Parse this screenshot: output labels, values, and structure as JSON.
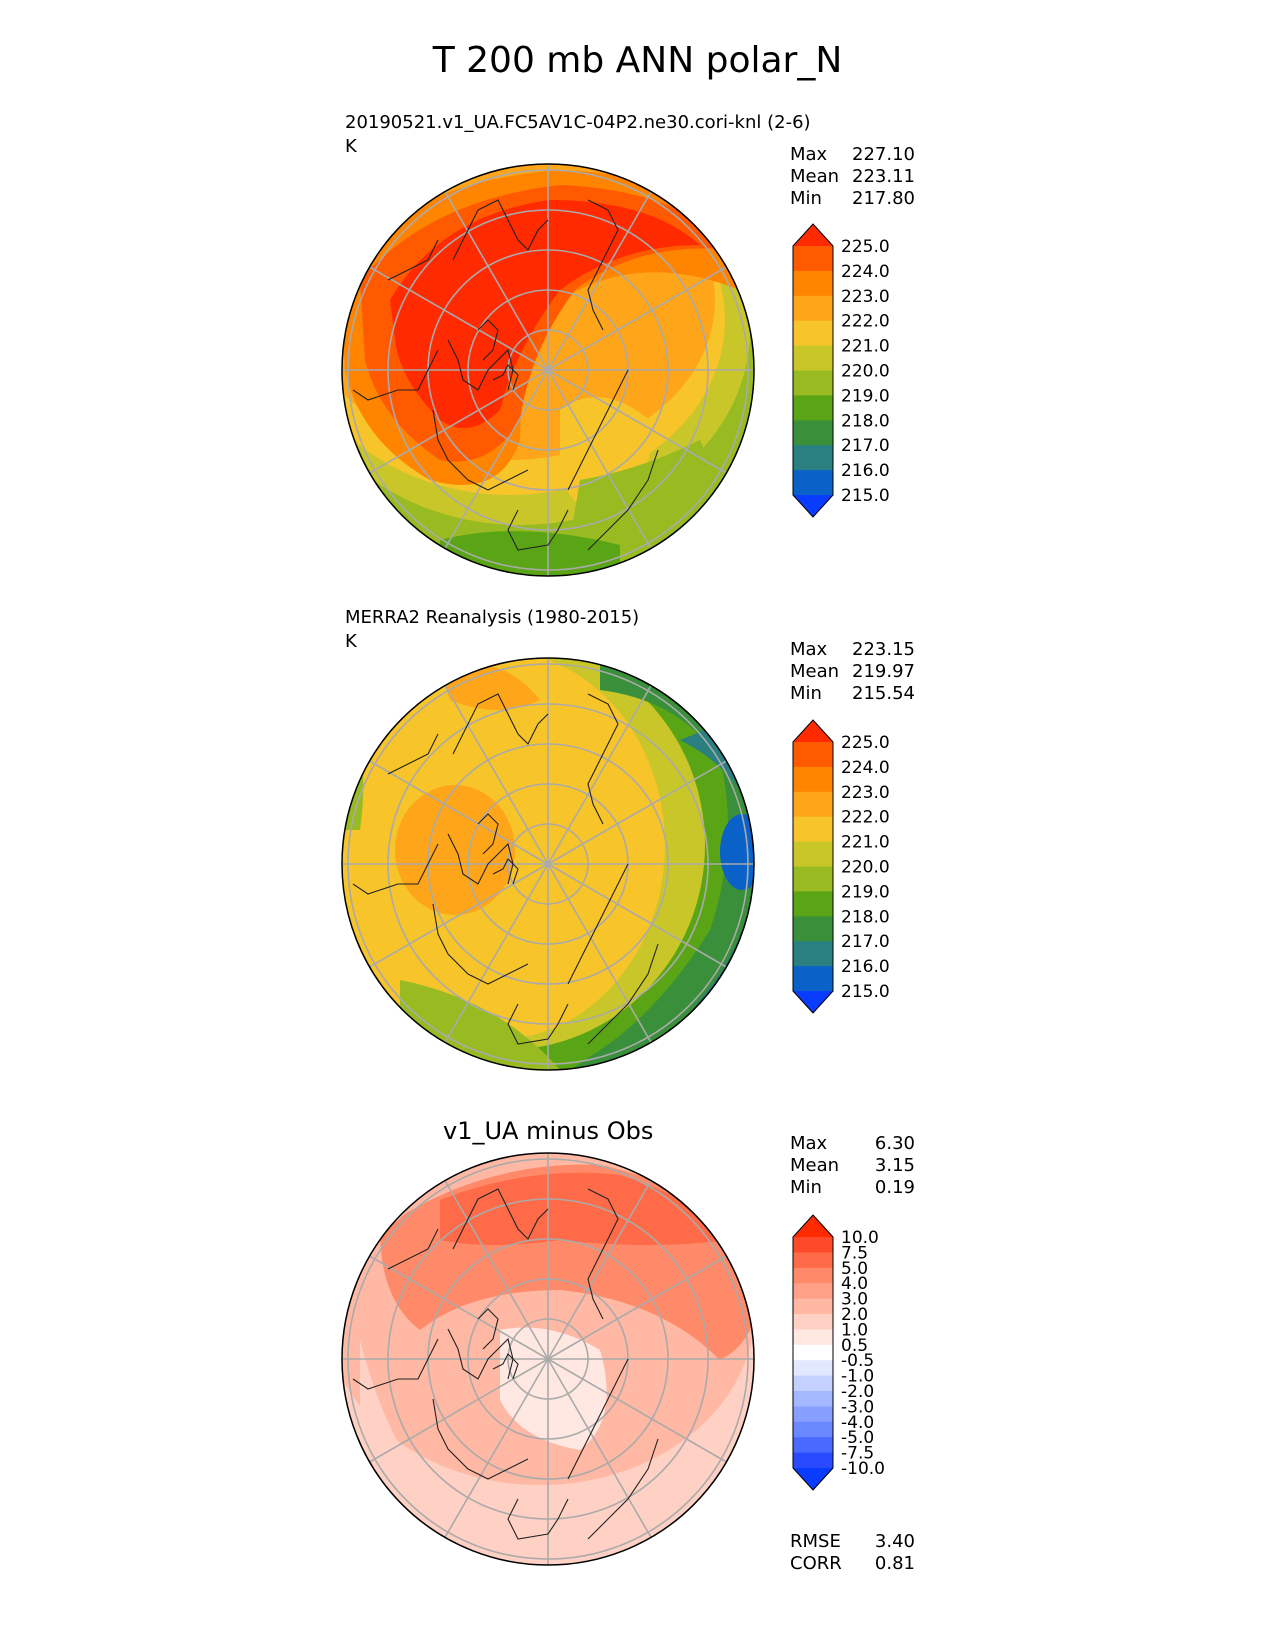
{
  "title": "T 200 mb ANN polar_N",
  "panels": [
    {
      "title_line1": "20190521.v1_UA.FC5AV1C-04P2.ne30.cori-knl (2-6)",
      "title_line2": "K",
      "stats": [
        {
          "label": "Max",
          "value": "227.10"
        },
        {
          "label": "Mean",
          "value": "223.11"
        },
        {
          "label": "Min",
          "value": "217.80"
        }
      ]
    },
    {
      "title_line1": "MERRA2 Reanalysis (1980-2015)",
      "title_line2": "K",
      "stats": [
        {
          "label": "Max",
          "value": "223.15"
        },
        {
          "label": "Mean",
          "value": "219.97"
        },
        {
          "label": "Min",
          "value": "215.54"
        }
      ]
    },
    {
      "title_line1": "v1_UA minus Obs",
      "title_line2": "",
      "stats": [
        {
          "label": "Max",
          "value": "6.30"
        },
        {
          "label": "Mean",
          "value": "3.15"
        },
        {
          "label": "Min",
          "value": "0.19"
        }
      ],
      "extra_stats": [
        {
          "label": "RMSE",
          "value": "3.40"
        },
        {
          "label": "CORR",
          "value": "0.81"
        }
      ]
    }
  ],
  "chart_data": [
    {
      "type": "heatmap",
      "projection": "north-polar-stereographic",
      "title": "20190521.v1_UA.FC5AV1C-04P2.ne30.cori-knl (2-6)",
      "units": "K",
      "colorbar_levels": [
        "225.0",
        "224.0",
        "223.0",
        "222.0",
        "221.0",
        "220.0",
        "219.0",
        "218.0",
        "217.0",
        "216.0",
        "215.0"
      ],
      "colorbar_colors": [
        "#ff2a00",
        "#ff5a00",
        "#ff8400",
        "#ffa51a",
        "#f7c42a",
        "#c9c62a",
        "#98bb22",
        "#5aa516",
        "#3a8f3a",
        "#2a7f80",
        "#0a62c8",
        "#0a3cff"
      ],
      "field_max": 227.1,
      "field_mean": 223.11,
      "field_min": 217.8
    },
    {
      "type": "heatmap",
      "projection": "north-polar-stereographic",
      "title": "MERRA2 Reanalysis (1980-2015)",
      "units": "K",
      "colorbar_levels": [
        "225.0",
        "224.0",
        "223.0",
        "222.0",
        "221.0",
        "220.0",
        "219.0",
        "218.0",
        "217.0",
        "216.0",
        "215.0"
      ],
      "colorbar_colors": [
        "#ff2a00",
        "#ff5a00",
        "#ff8400",
        "#ffa51a",
        "#f7c42a",
        "#c9c62a",
        "#98bb22",
        "#5aa516",
        "#3a8f3a",
        "#2a7f80",
        "#0a62c8",
        "#0a3cff"
      ],
      "field_max": 223.15,
      "field_mean": 219.97,
      "field_min": 215.54
    },
    {
      "type": "heatmap",
      "projection": "north-polar-stereographic",
      "title": "v1_UA minus Obs",
      "colorbar_levels": [
        "10.0",
        "7.5",
        "5.0",
        "4.0",
        "3.0",
        "2.0",
        "1.0",
        "0.5",
        "-0.5",
        "-1.0",
        "-2.0",
        "-3.0",
        "-4.0",
        "-5.0",
        "-7.5",
        "-10.0"
      ],
      "colorbar_colors": [
        "#ff2a00",
        "#ff4a2a",
        "#ff6a48",
        "#ff8a6a",
        "#ffa088",
        "#ffb8a4",
        "#ffd0c4",
        "#ffe8e2",
        "#ffffff",
        "#e2e8ff",
        "#c4d0ff",
        "#a4b8ff",
        "#889fff",
        "#6a88ff",
        "#4a6aff",
        "#2a4aff",
        "#0a3cff"
      ],
      "field_max": 6.3,
      "field_mean": 3.15,
      "field_min": 0.19,
      "rmse": 3.4,
      "corr": 0.81
    }
  ]
}
